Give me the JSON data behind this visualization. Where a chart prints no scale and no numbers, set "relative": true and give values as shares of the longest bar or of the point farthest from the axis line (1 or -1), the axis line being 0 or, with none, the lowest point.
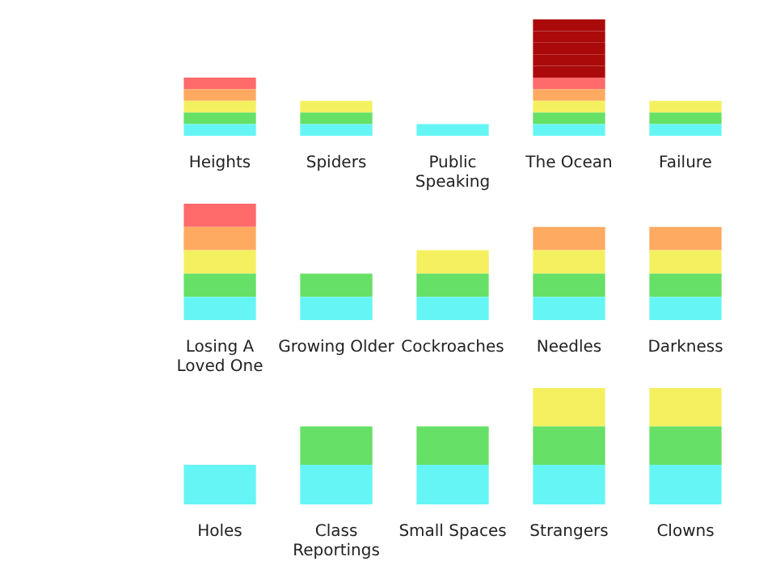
{
  "chart_data": [
    {
      "type": "bar",
      "stacked": true,
      "relative": true,
      "grid": false,
      "categories": [
        "Heights",
        "Spiders",
        "Public Speaking",
        "The Ocean",
        "Failure"
      ],
      "series": [
        {
          "color": "#66f5f5",
          "values": [
            0.1,
            0.1,
            0.1,
            0.1,
            0.1
          ]
        },
        {
          "color": "#66e066",
          "values": [
            0.1,
            0.1,
            null,
            0.1,
            0.1
          ]
        },
        {
          "color": "#f5f060",
          "values": [
            0.1,
            0.1,
            null,
            0.1,
            0.1
          ]
        },
        {
          "color": "#ffaa60",
          "values": [
            0.1,
            null,
            null,
            0.1,
            null
          ]
        },
        {
          "color": "#ff6a6a",
          "values": [
            0.1,
            null,
            null,
            0.1,
            null
          ]
        },
        {
          "color": "#aa0a0a",
          "values": [
            null,
            null,
            null,
            0.1,
            null
          ]
        },
        {
          "color": "#aa0a0a",
          "values": [
            null,
            null,
            null,
            0.1,
            null
          ]
        },
        {
          "color": "#aa0a0a",
          "values": [
            null,
            null,
            null,
            0.1,
            null
          ]
        },
        {
          "color": "#aa0a0a",
          "values": [
            null,
            null,
            null,
            0.1,
            null
          ]
        },
        {
          "color": "#aa0a0a",
          "values": [
            null,
            null,
            null,
            0.1,
            null
          ]
        }
      ]
    },
    {
      "type": "bar",
      "stacked": true,
      "relative": true,
      "grid": false,
      "categories": [
        "Losing A Loved One",
        "Growing Older",
        "Cockroaches",
        "Needles",
        "Darkness"
      ],
      "series": [
        {
          "color": "#66f5f5",
          "values": [
            0.2,
            0.2,
            0.2,
            0.2,
            0.2
          ]
        },
        {
          "color": "#66e066",
          "values": [
            0.2,
            0.2,
            0.2,
            0.2,
            0.2
          ]
        },
        {
          "color": "#f5f060",
          "values": [
            0.2,
            null,
            0.2,
            0.2,
            0.2
          ]
        },
        {
          "color": "#ffaa60",
          "values": [
            0.2,
            null,
            null,
            0.2,
            0.2
          ]
        },
        {
          "color": "#ff6a6a",
          "values": [
            0.2,
            null,
            null,
            null,
            null
          ]
        }
      ]
    },
    {
      "type": "bar",
      "stacked": true,
      "relative": true,
      "grid": false,
      "categories": [
        "Holes",
        "Class Reportings",
        "Small Spaces",
        "Strangers",
        "Clowns"
      ],
      "series": [
        {
          "color": "#66f5f5",
          "values": [
            0.34,
            0.34,
            0.34,
            0.34,
            0.34
          ]
        },
        {
          "color": "#66e066",
          "values": [
            null,
            0.33,
            0.33,
            0.33,
            0.33
          ]
        },
        {
          "color": "#f5f060",
          "values": [
            null,
            null,
            null,
            0.33,
            0.33
          ]
        }
      ]
    }
  ]
}
